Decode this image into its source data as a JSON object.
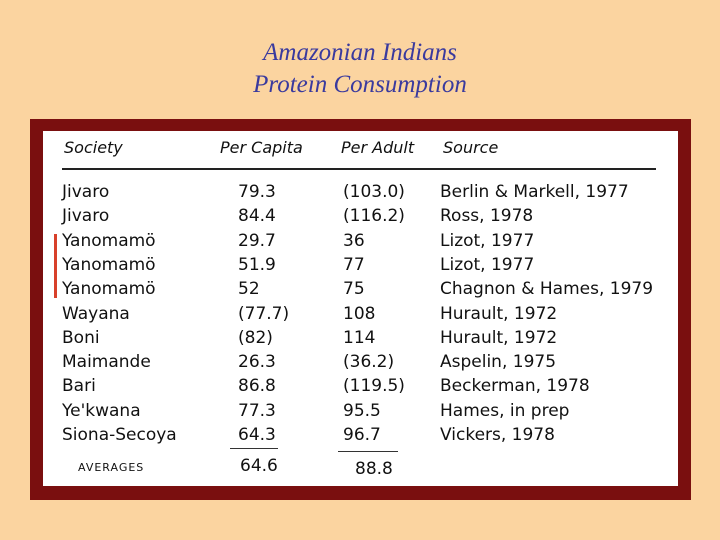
{
  "title": {
    "line1": "Amazonian Indians",
    "line2": "Protein Consumption"
  },
  "table": {
    "headers": {
      "society": "Society",
      "per_capita": "Per Capita",
      "per_adult": "Per Adult",
      "source": "Source"
    },
    "rows": [
      {
        "society": "Jivaro",
        "per_capita": "79.3",
        "per_adult": "(103.0)",
        "source": "Berlin & Markell, 1977"
      },
      {
        "society": "Jivaro",
        "per_capita": "84.4",
        "per_adult": "(116.2)",
        "source": "Ross, 1978"
      },
      {
        "society": "Yanomamö",
        "per_capita": "29.7",
        "per_adult": "36",
        "source": "Lizot, 1977"
      },
      {
        "society": "Yanomamö",
        "per_capita": "51.9",
        "per_adult": "77",
        "source": "Lizot, 1977"
      },
      {
        "society": "Yanomamö",
        "per_capita": "52",
        "per_adult": "75",
        "source": "Chagnon & Hames, 1979"
      },
      {
        "society": "Wayana",
        "per_capita": "(77.7)",
        "per_adult": "108",
        "source": "Hurault, 1972"
      },
      {
        "society": "Boni",
        "per_capita": "(82)",
        "per_adult": "114",
        "source": "Hurault, 1972"
      },
      {
        "society": "Maimande",
        "per_capita": "26.3",
        "per_adult": "(36.2)",
        "source": "Aspelin, 1975"
      },
      {
        "society": "Bari",
        "per_capita": "86.8",
        "per_adult": "(119.5)",
        "source": "Beckerman, 1978"
      },
      {
        "society": "Ye'kwana",
        "per_capita": "77.3",
        "per_adult": "95.5",
        "source": "Hames, in prep"
      },
      {
        "society": "Siona-Secoya",
        "per_capita": "64.3",
        "per_adult": "96.7",
        "source": "Vickers, 1978"
      }
    ],
    "averages": {
      "label": "AVERAGES",
      "per_capita": "64.6",
      "per_adult": "88.8"
    }
  },
  "colors": {
    "background": "#fbd4a0",
    "title": "#3a3a9e",
    "frame": "#7a0f0f",
    "bracket": "#d8402a"
  }
}
